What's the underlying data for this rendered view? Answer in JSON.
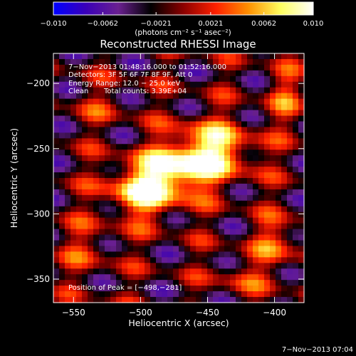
{
  "chart_data": {
    "type": "heatmap",
    "title": "Reconstructed RHESSI Image",
    "xlabel": "Heliocentric X (arcsec)",
    "ylabel": "Heliocentric Y (arcsec)",
    "xlim": [
      -565,
      -378
    ],
    "ylim": [
      -368,
      -177
    ],
    "x_ticks": [
      -550,
      -500,
      -450,
      -400
    ],
    "y_ticks": [
      -200,
      -250,
      -300,
      -350
    ],
    "x_tick_labels": [
      "−550",
      "−500",
      "−450",
      "−400"
    ],
    "y_tick_labels": [
      "−200",
      "−250",
      "−300",
      "−350"
    ],
    "colorbar": {
      "min": -0.01,
      "max": 0.01,
      "ticks": [
        -0.01,
        -0.0062,
        -0.0021,
        0.0021,
        0.0062,
        0.01
      ],
      "tick_labels": [
        "−0.010",
        "−0.0062",
        "−0.0021",
        "0.0021",
        "0.0062",
        "0.010"
      ],
      "units": "(photons cm⁻² s⁻¹ asec⁻²)",
      "colors": [
        "#0000ff",
        "#3a00b8",
        "#6a2090",
        "#000000",
        "#8b0000",
        "#ff2000",
        "#ff9000",
        "#ffff60",
        "#ffffff"
      ]
    },
    "annotations": {
      "time_range": "7−Nov−2013 01:48:16.000 to 01:52:16.000",
      "detectors": "Detectors: 3F 5F 6F 7F 8F 9F, Att 0",
      "energy_range": "Energy Range: 12.0 − 25.0 keV",
      "method": "Clean",
      "total_counts": "Total counts: 3.39E+04",
      "peak_position": "Position of Peak = [−498,−281]",
      "timestamp": "7−Nov−2013 07:04"
    },
    "peak": {
      "x": -498,
      "y": -281
    },
    "sources": [
      {
        "x": -498,
        "y": -281,
        "amp": 0.0105,
        "sx": 18,
        "sy": 15
      },
      {
        "x": -446,
        "y": -252,
        "amp": 0.0098,
        "sx": 20,
        "sy": 16
      },
      {
        "x": -472,
        "y": -266,
        "amp": 0.0078,
        "sx": 16,
        "sy": 14
      },
      {
        "x": -540,
        "y": -327,
        "amp": 0.003,
        "sx": 14,
        "sy": 16
      },
      {
        "x": -530,
        "y": -218,
        "amp": 0.0022,
        "sx": 16,
        "sy": 10
      },
      {
        "x": -398,
        "y": -322,
        "amp": 0.0045,
        "sx": 14,
        "sy": 14
      },
      {
        "x": -392,
        "y": -210,
        "amp": 0.0038,
        "sx": 10,
        "sy": 16
      },
      {
        "x": -425,
        "y": -350,
        "amp": 0.0032,
        "sx": 14,
        "sy": 10
      }
    ],
    "ripple": {
      "amp": 0.0085,
      "kx": 0.085,
      "ky": 0.1,
      "kx2": 0.05,
      "ky2": 0.12
    }
  }
}
